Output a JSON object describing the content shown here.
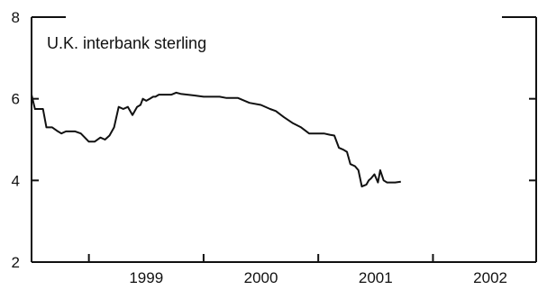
{
  "chart_data": {
    "type": "line",
    "title": "U.K. interbank sterling",
    "xlabel": "",
    "ylabel": "",
    "xlim": [
      1998.5,
      2002.9
    ],
    "ylim": [
      2,
      8
    ],
    "x_ticks": [
      "1999",
      "2000",
      "2001",
      "2002"
    ],
    "y_ticks": [
      "2",
      "4",
      "6",
      "8"
    ],
    "grid": false,
    "line_color": "#111111",
    "series": [
      {
        "x": [
          1998.5,
          1998.53,
          1998.6,
          1998.63,
          1998.68,
          1998.73,
          1998.76,
          1998.8,
          1998.84,
          1998.88,
          1998.93,
          1999.0,
          1999.05,
          1999.1,
          1999.14,
          1999.18,
          1999.22,
          1999.26,
          1999.3,
          1999.34,
          1999.38,
          1999.42,
          1999.45,
          1999.47,
          1999.5,
          1999.53,
          1999.56,
          1999.58,
          1999.61,
          1999.64,
          1999.68,
          1999.72,
          1999.76,
          1999.8,
          1999.86,
          1999.92,
          2000.0,
          2000.04,
          2000.08,
          2000.14,
          2000.2,
          2000.3,
          2000.4,
          2000.5,
          2000.58,
          2000.63,
          2000.7,
          2000.78,
          2000.85,
          2000.92,
          2001.0,
          2001.05,
          2001.1,
          2001.14,
          2001.18,
          2001.22,
          2001.25,
          2001.28,
          2001.32,
          2001.35,
          2001.38,
          2001.42,
          2001.44,
          2001.46,
          2001.49,
          2001.52,
          2001.54,
          2001.57,
          2001.6,
          2001.63,
          2001.67,
          2001.72
        ],
        "values": [
          6.1,
          5.75,
          5.75,
          5.3,
          5.3,
          5.2,
          5.15,
          5.2,
          5.2,
          5.2,
          5.15,
          4.95,
          4.95,
          5.05,
          5.0,
          5.1,
          5.3,
          5.8,
          5.75,
          5.8,
          5.6,
          5.8,
          5.85,
          6.0,
          5.95,
          6.0,
          6.05,
          6.05,
          6.1,
          6.1,
          6.1,
          6.1,
          6.15,
          6.12,
          6.1,
          6.08,
          6.05,
          6.05,
          6.05,
          6.05,
          6.02,
          6.02,
          5.9,
          5.85,
          5.75,
          5.7,
          5.55,
          5.4,
          5.3,
          5.15,
          5.15,
          5.15,
          5.12,
          5.1,
          4.8,
          4.75,
          4.7,
          4.4,
          4.35,
          4.25,
          3.85,
          3.9,
          4.0,
          4.05,
          4.15,
          3.95,
          4.25,
          4.0,
          3.95,
          3.95,
          3.95,
          3.97
        ]
      }
    ]
  }
}
